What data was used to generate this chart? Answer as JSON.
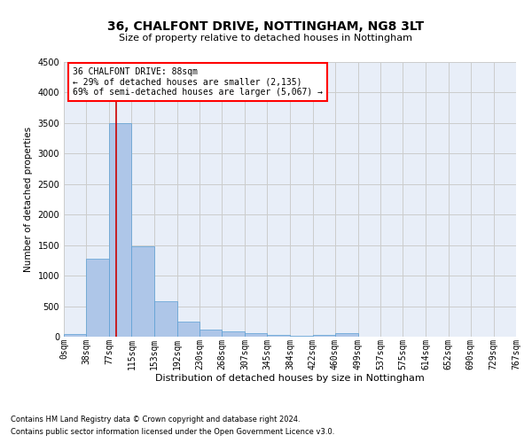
{
  "title1": "36, CHALFONT DRIVE, NOTTINGHAM, NG8 3LT",
  "title2": "Size of property relative to detached houses in Nottingham",
  "xlabel": "Distribution of detached houses by size in Nottingham",
  "ylabel": "Number of detached properties",
  "footer1": "Contains HM Land Registry data © Crown copyright and database right 2024.",
  "footer2": "Contains public sector information licensed under the Open Government Licence v3.0.",
  "annotation_line1": "36 CHALFONT DRIVE: 88sqm",
  "annotation_line2": "← 29% of detached houses are smaller (2,135)",
  "annotation_line3": "69% of semi-detached houses are larger (5,067) →",
  "property_sqm": 88,
  "bin_edges": [
    0,
    38,
    77,
    115,
    153,
    192,
    230,
    268,
    307,
    345,
    384,
    422,
    460,
    499,
    537,
    575,
    614,
    652,
    690,
    729,
    767
  ],
  "bar_heights": [
    50,
    1275,
    3500,
    1480,
    580,
    240,
    120,
    90,
    60,
    30,
    20,
    30,
    60,
    5,
    0,
    0,
    0,
    0,
    0,
    0
  ],
  "bar_color": "#aec6e8",
  "bar_edge_color": "#5a9fd4",
  "red_line_color": "#cc0000",
  "grid_color": "#cccccc",
  "background_color": "#e8eef8",
  "ylim": [
    0,
    4500
  ],
  "yticks": [
    0,
    500,
    1000,
    1500,
    2000,
    2500,
    3000,
    3500,
    4000,
    4500
  ],
  "title1_fontsize": 10,
  "title2_fontsize": 8,
  "xlabel_fontsize": 8,
  "ylabel_fontsize": 7.5,
  "tick_fontsize": 7,
  "annotation_fontsize": 7,
  "footer_fontsize": 6
}
